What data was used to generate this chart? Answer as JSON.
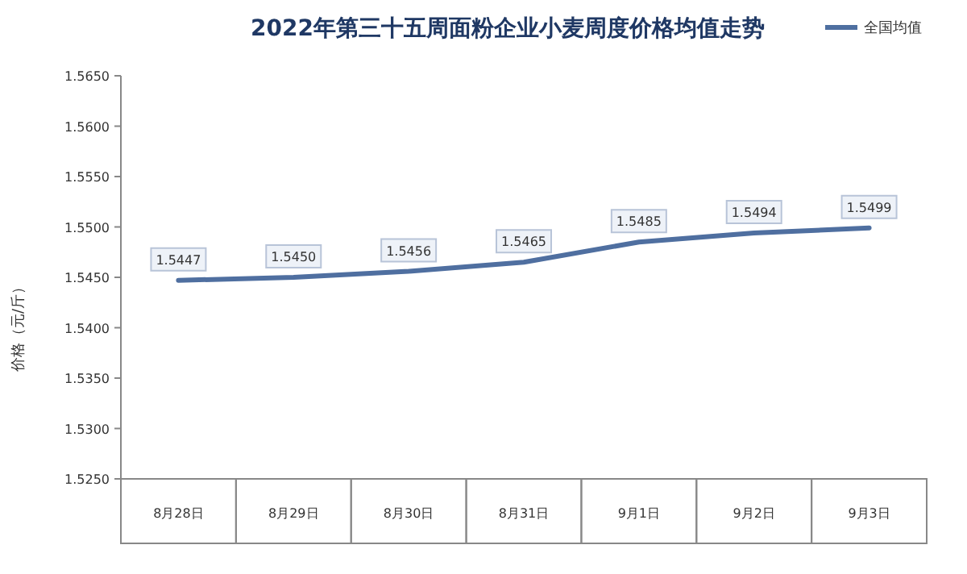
{
  "chart_data": {
    "type": "line",
    "title": "2022年第三十五周面粉企业小麦周度价格均值走势",
    "ylabel": "价格（元/斤）",
    "categories": [
      "8月28日",
      "8月29日",
      "8月30日",
      "8月31日",
      "9月1日",
      "9月2日",
      "9月3日"
    ],
    "series": [
      {
        "name": "全国均值",
        "color": "#4f6fa0",
        "values": [
          1.5447,
          1.545,
          1.5456,
          1.5465,
          1.5485,
          1.5494,
          1.5499
        ],
        "value_labels": [
          "1.5447",
          "1.5450",
          "1.5456",
          "1.5465",
          "1.5485",
          "1.5494",
          "1.5499"
        ]
      }
    ],
    "ylim": [
      1.525,
      1.565
    ],
    "yticks": [
      {
        "value": 1.525,
        "label": "1.5250"
      },
      {
        "value": 1.53,
        "label": "1.5300"
      },
      {
        "value": 1.535,
        "label": "1.5350"
      },
      {
        "value": 1.54,
        "label": "1.5400"
      },
      {
        "value": 1.545,
        "label": "1.5450"
      },
      {
        "value": 1.55,
        "label": "1.5500"
      },
      {
        "value": 1.555,
        "label": "1.5550"
      },
      {
        "value": 1.56,
        "label": "1.5600"
      },
      {
        "value": 1.565,
        "label": "1.5650"
      }
    ],
    "legend": "top right",
    "marker": "none",
    "line_style": "solid"
  }
}
